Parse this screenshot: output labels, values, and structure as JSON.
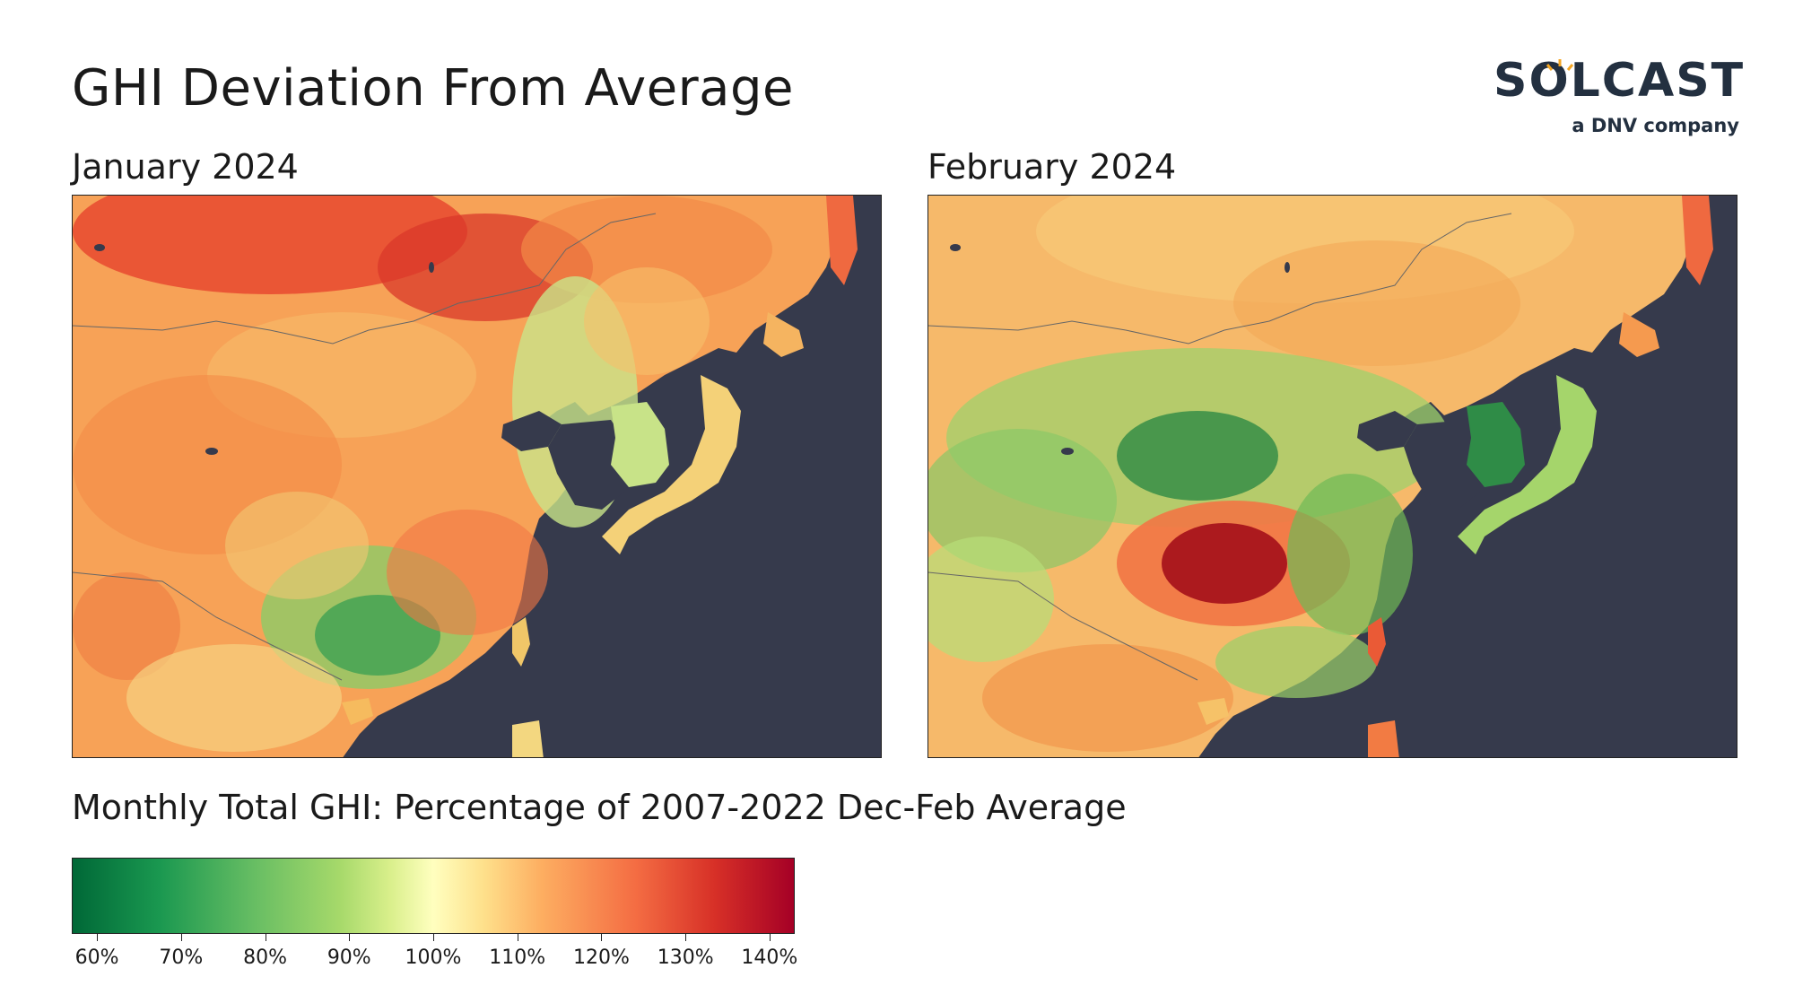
{
  "title": "GHI Deviation From Average",
  "logo": {
    "word": "SOLCAST",
    "tagline": "a DNV company",
    "icon": "sun-icon"
  },
  "panels": [
    {
      "label": "January 2024"
    },
    {
      "label": "February 2024"
    }
  ],
  "subtitle": "Monthly Total GHI: Percentage of 2007-2022  Dec-Feb Average",
  "colorbar": {
    "ticks": [
      "60%",
      "70%",
      "80%",
      "90%",
      "100%",
      "110%",
      "120%",
      "130%",
      "140%"
    ],
    "tick_values": [
      60,
      70,
      80,
      90,
      100,
      110,
      120,
      130,
      140
    ],
    "range": [
      57,
      143
    ],
    "colors": [
      "#006837",
      "#1a9850",
      "#66bd63",
      "#a6d96a",
      "#d9ef8b",
      "#ffffbf",
      "#fee08b",
      "#fdae61",
      "#f46d43",
      "#d73027",
      "#a50026"
    ]
  },
  "ocean_color": "#363a4c"
}
